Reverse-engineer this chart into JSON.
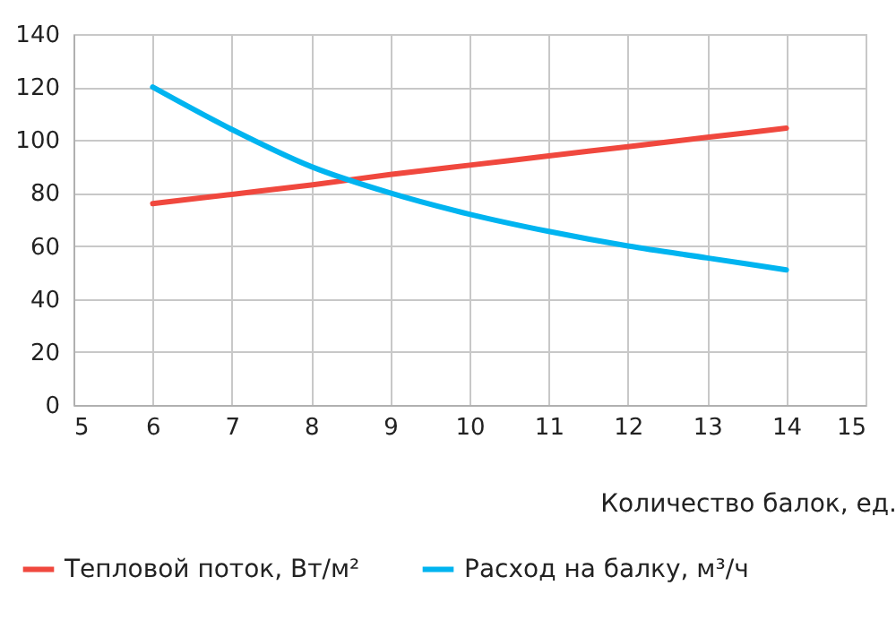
{
  "chart_data": {
    "type": "line",
    "xlabel": "Количество балок, ед.",
    "x": [
      6,
      7,
      8,
      9,
      10,
      11,
      12,
      13,
      14
    ],
    "series": [
      {
        "name": "Тепловой поток, Вт/м²",
        "color": "#f0483e",
        "values": [
          76,
          79.5,
          83,
          87,
          90.5,
          94,
          97.5,
          101,
          104.5
        ]
      },
      {
        "name": "Расход на балку, м³/ч",
        "color": "#00b4f0",
        "values": [
          120,
          104,
          90,
          80,
          72,
          65.5,
          60,
          55.5,
          51
        ]
      }
    ],
    "xlim": [
      5,
      15
    ],
    "xticks": [
      5,
      6,
      7,
      8,
      9,
      10,
      11,
      12,
      13,
      14,
      15
    ],
    "ylim": [
      0,
      140
    ],
    "yticks": [
      0,
      20,
      40,
      60,
      80,
      100,
      120,
      140
    ],
    "grid": true,
    "legend": "bottom",
    "marker": "none",
    "line_style": "solid"
  }
}
